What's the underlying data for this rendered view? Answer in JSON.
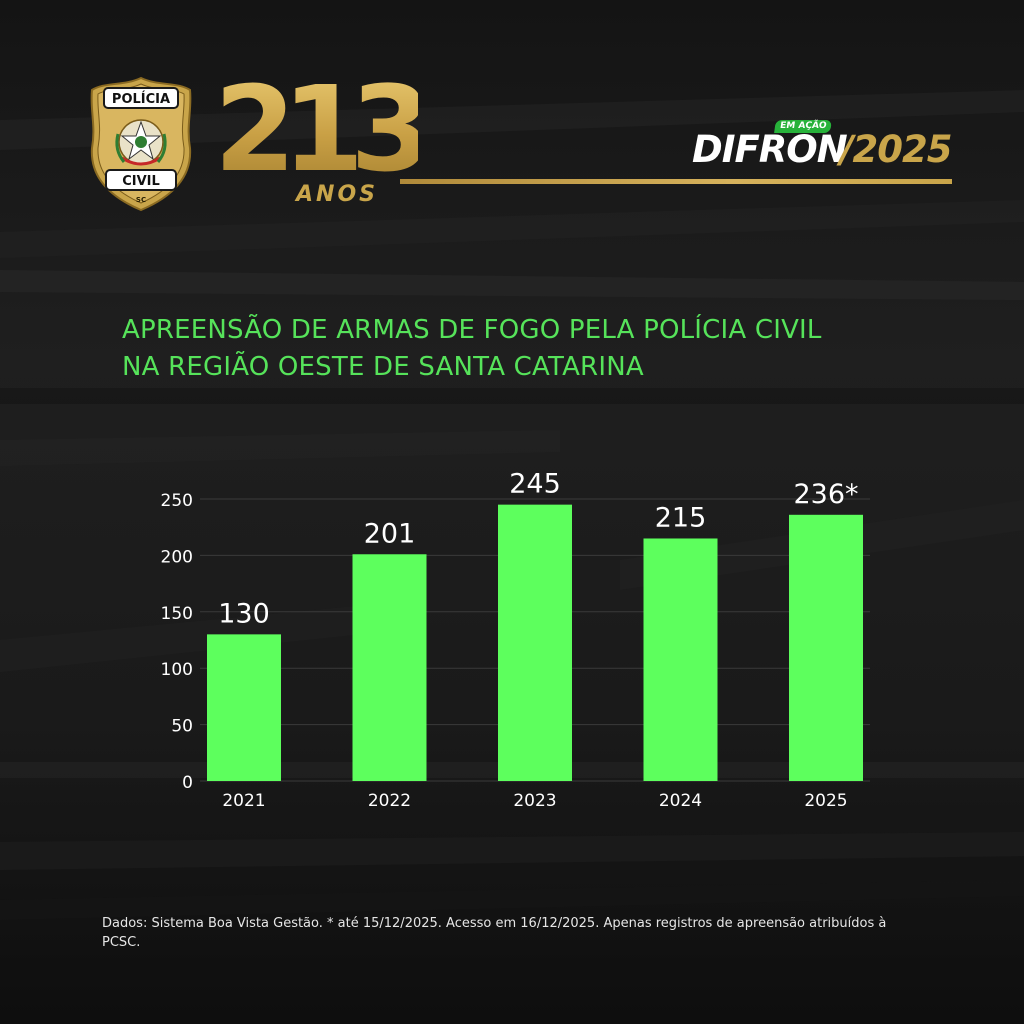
{
  "brand": {
    "badge_top": "POLÍCIA",
    "badge_bottom": "CIVIL",
    "badge_state": "SC",
    "anniversary_number": "213",
    "anniversary_label": "ANOS",
    "program_tag": "EM AÇÃO",
    "program_name": "DIFRON",
    "program_year": "/2025",
    "colors": {
      "gold": "#c9a54a",
      "green": "#5dff5d",
      "title_green": "#56e35a"
    }
  },
  "title": {
    "line1": "APREENSÃO DE ARMAS DE FOGO PELA POLÍCIA CIVIL",
    "line2": "NA REGIÃO OESTE DE SANTA CATARINA"
  },
  "chart_data": {
    "type": "bar",
    "categories": [
      "2021",
      "2022",
      "2023",
      "2024",
      "2025"
    ],
    "values": [
      130,
      201,
      245,
      215,
      236
    ],
    "value_labels": [
      "130",
      "201",
      "245",
      "215",
      "236*"
    ],
    "ylim": [
      0,
      250
    ],
    "yticks": [
      "0",
      "50",
      "100",
      "150",
      "200",
      "250"
    ],
    "grid": true,
    "bar_color": "#5dff5d"
  },
  "footnote": "Dados: Sistema Boa Vista Gestão. * até 15/12/2025. Acesso em 16/12/2025. Apenas registros de apreensão atribuídos à PCSC."
}
